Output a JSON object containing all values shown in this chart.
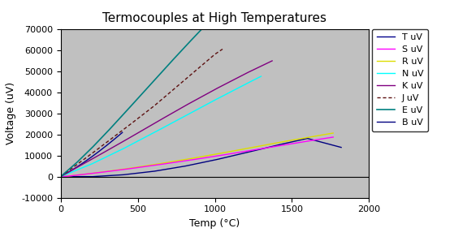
{
  "title": "Termocouples at High Temperatures",
  "xlabel": "Temp (°C)",
  "ylabel": "Voltage (uV)",
  "xlim": [
    0,
    2000
  ],
  "ylim": [
    -10000,
    70000
  ],
  "yticks": [
    -10000,
    0,
    10000,
    20000,
    30000,
    40000,
    50000,
    60000,
    70000
  ],
  "xticks": [
    0,
    500,
    1000,
    1500,
    2000
  ],
  "background_color": "#c0c0c0",
  "T": {
    "color": "#00008B",
    "temps": [
      0,
      50,
      100,
      150,
      200,
      250,
      300,
      350,
      400
    ],
    "uvs": [
      0,
      2036,
      4279,
      6704,
      9288,
      12013,
      14862,
      17819,
      20872
    ]
  },
  "S": {
    "color": "#FF00FF",
    "temps": [
      0,
      200,
      400,
      600,
      800,
      1000,
      1200,
      1400,
      1600,
      1768
    ],
    "uvs": [
      -236,
      1441,
      3251,
      5239,
      7345,
      9587,
      11951,
      14373,
      16771,
      18693
    ]
  },
  "R": {
    "color": "#DDDD00",
    "temps": [
      0,
      200,
      400,
      600,
      800,
      1000,
      1200,
      1400,
      1600,
      1768
    ],
    "uvs": [
      -226,
      1469,
      3408,
      5583,
      7950,
      10506,
      13228,
      15974,
      18503,
      20613
    ]
  },
  "N": {
    "color": "#00FFFF",
    "temps": [
      0,
      200,
      400,
      600,
      800,
      1000,
      1200,
      1300
    ],
    "uvs": [
      0,
      5913,
      12974,
      20613,
      28455,
      36256,
      43846,
      47513
    ]
  },
  "K": {
    "color": "#800080",
    "temps": [
      0,
      200,
      400,
      600,
      800,
      1000,
      1200,
      1372
    ],
    "uvs": [
      0,
      8138,
      16397,
      24906,
      33275,
      41276,
      48838,
      54874
    ]
  },
  "J": {
    "color": "#5C1010",
    "temps": [
      0,
      200,
      400,
      600,
      800,
      1000,
      1050
    ],
    "uvs": [
      0,
      10779,
      21848,
      33102,
      45498,
      57953,
      60420
    ]
  },
  "E": {
    "color": "#008080",
    "temps": [
      0,
      100,
      200,
      300,
      400,
      500,
      600,
      700,
      800,
      900,
      1000
    ],
    "uvs": [
      0,
      6319,
      13421,
      21033,
      28946,
      37005,
      45093,
      53112,
      61017,
      68787,
      76373
    ]
  },
  "B": {
    "color": "#000080",
    "temps": [
      0,
      200,
      400,
      600,
      800,
      1000,
      1200,
      1400,
      1600,
      1820
    ],
    "uvs": [
      0,
      -74,
      787,
      2431,
      4834,
      7848,
      11263,
      14792,
      18091,
      13820
    ]
  },
  "legend_order": [
    "T uV",
    "S uV",
    "R uV",
    "N uV",
    "K uV",
    "J uV",
    "E uV",
    "B uV"
  ]
}
